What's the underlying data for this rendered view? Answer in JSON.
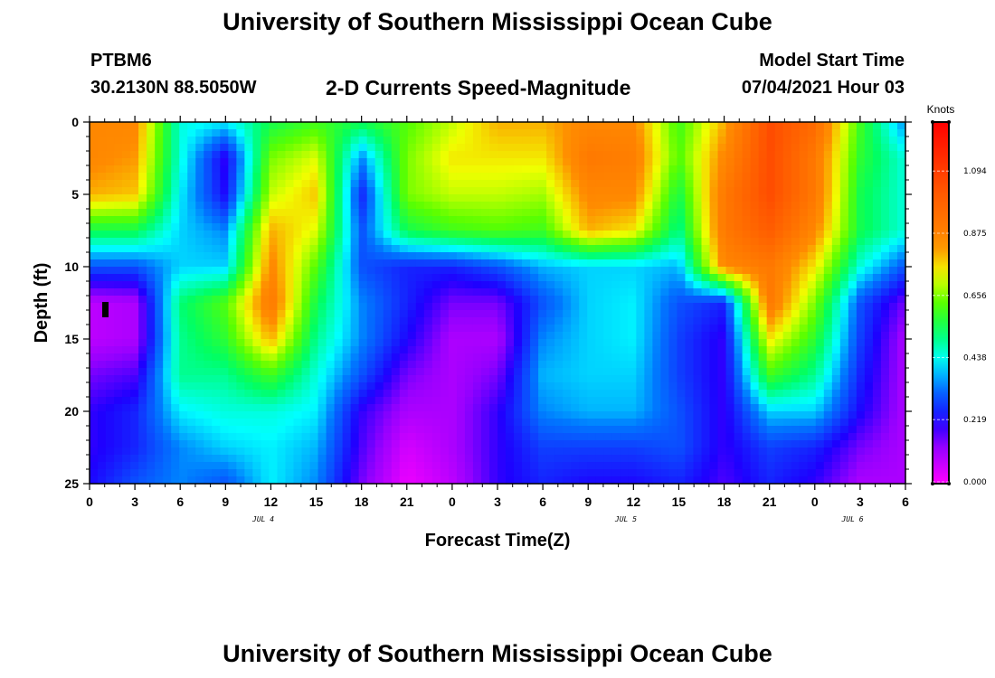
{
  "header": {
    "title": "University of Southern Mississippi Ocean Cube",
    "station": "PTBM6",
    "coords": "30.2130N  88.5050W",
    "plot_title": "2-D Currents Speed-Magnitude",
    "model_label": "Model Start Time",
    "model_time": "07/04/2021 Hour 03"
  },
  "footer": {
    "title": "University of Southern Mississippi Ocean Cube"
  },
  "chart_data": {
    "type": "heatmap",
    "title": "2-D Currents Speed-Magnitude",
    "xlabel": "Forecast Time(Z)",
    "ylabel": "Depth (ft)",
    "xlim": [
      0,
      54
    ],
    "ylim": [
      0,
      25
    ],
    "y_inverted": true,
    "x_tick_labels": [
      "0",
      "3",
      "6",
      "9",
      "12",
      "15",
      "18",
      "21",
      "0",
      "3",
      "6",
      "9",
      "12",
      "15",
      "18",
      "21",
      "0",
      "3",
      "6"
    ],
    "y_ticks": [
      0,
      5,
      10,
      15,
      20,
      25
    ],
    "day_labels": [
      {
        "label": "JUL 4",
        "hour": 11.5
      },
      {
        "label": "JUL 5",
        "hour": 35.5
      },
      {
        "label": "JUL 6",
        "hour": 50.5
      }
    ],
    "colorbar": {
      "unit": "Knots",
      "min": 0.0,
      "max": 1.26,
      "tick_labels": [
        "0.000",
        "0.219",
        "0.438",
        "0.656",
        "0.875",
        "1.094"
      ],
      "tick_values": [
        0.0,
        0.219,
        0.438,
        0.656,
        0.875,
        1.094
      ]
    },
    "depths": [
      0,
      2.5,
      5,
      7.5,
      10,
      12.5,
      15,
      17.5,
      20,
      22.5,
      25
    ],
    "hours": [
      0,
      3,
      6,
      9,
      12,
      15,
      18,
      21,
      24,
      27,
      30,
      33,
      36,
      39,
      42,
      45,
      48,
      51,
      54
    ],
    "values": [
      [
        0.85,
        0.85,
        0.45,
        0.42,
        0.55,
        0.6,
        0.55,
        0.62,
        0.7,
        0.8,
        0.8,
        0.85,
        0.85,
        0.6,
        0.8,
        1.05,
        0.95,
        0.6,
        0.35
      ],
      [
        0.85,
        0.82,
        0.45,
        0.2,
        0.65,
        0.72,
        0.35,
        0.65,
        0.75,
        0.75,
        0.75,
        0.9,
        0.88,
        0.62,
        0.85,
        1.05,
        0.9,
        0.58,
        0.45
      ],
      [
        0.8,
        0.78,
        0.42,
        0.22,
        0.7,
        0.78,
        0.25,
        0.65,
        0.7,
        0.7,
        0.68,
        0.85,
        0.85,
        0.55,
        0.9,
        1.05,
        0.9,
        0.55,
        0.45
      ],
      [
        0.55,
        0.55,
        0.4,
        0.35,
        0.8,
        0.72,
        0.3,
        0.55,
        0.6,
        0.62,
        0.6,
        0.8,
        0.75,
        0.5,
        0.9,
        1.0,
        0.85,
        0.55,
        0.45
      ],
      [
        0.3,
        0.3,
        0.4,
        0.4,
        0.85,
        0.62,
        0.3,
        0.25,
        0.25,
        0.3,
        0.38,
        0.4,
        0.4,
        0.38,
        0.85,
        0.9,
        0.75,
        0.45,
        0.3
      ],
      [
        0.08,
        0.1,
        0.52,
        0.62,
        0.9,
        0.55,
        0.35,
        0.25,
        0.15,
        0.15,
        0.3,
        0.4,
        0.42,
        0.3,
        0.25,
        0.9,
        0.65,
        0.3,
        0.15
      ],
      [
        0.08,
        0.1,
        0.5,
        0.58,
        0.8,
        0.5,
        0.35,
        0.22,
        0.1,
        0.1,
        0.35,
        0.4,
        0.42,
        0.28,
        0.2,
        0.75,
        0.58,
        0.28,
        0.1
      ],
      [
        0.15,
        0.18,
        0.5,
        0.5,
        0.6,
        0.45,
        0.3,
        0.15,
        0.1,
        0.15,
        0.38,
        0.4,
        0.4,
        0.28,
        0.2,
        0.6,
        0.5,
        0.25,
        0.1
      ],
      [
        0.2,
        0.25,
        0.42,
        0.45,
        0.45,
        0.42,
        0.2,
        0.1,
        0.1,
        0.2,
        0.35,
        0.38,
        0.38,
        0.3,
        0.2,
        0.4,
        0.4,
        0.22,
        0.1
      ],
      [
        0.2,
        0.25,
        0.35,
        0.4,
        0.42,
        0.38,
        0.18,
        0.05,
        0.1,
        0.2,
        0.28,
        0.28,
        0.28,
        0.3,
        0.2,
        0.28,
        0.25,
        0.15,
        0.1
      ],
      [
        0.22,
        0.3,
        0.35,
        0.3,
        0.42,
        0.35,
        0.15,
        0.02,
        0.08,
        0.2,
        0.25,
        0.22,
        0.22,
        0.25,
        0.18,
        0.25,
        0.2,
        0.1,
        0.1
      ]
    ]
  }
}
